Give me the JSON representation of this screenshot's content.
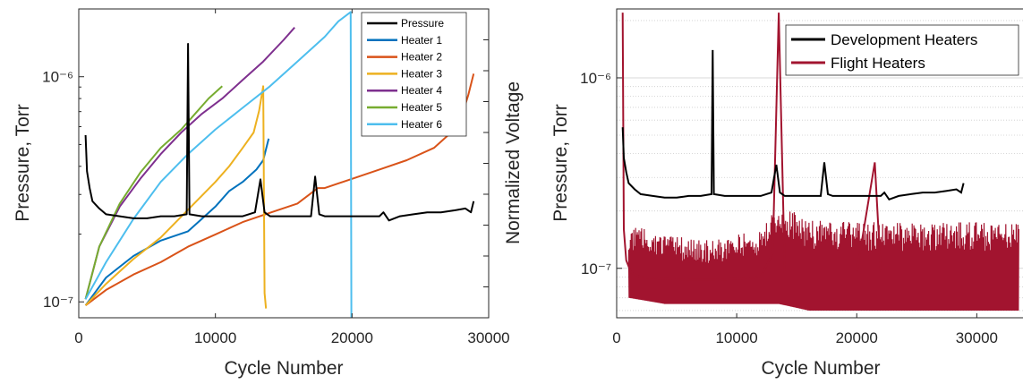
{
  "chart_data": [
    {
      "type": "line",
      "xlabel": "Cycle Number",
      "ylabel_left": "Pressure, Torr",
      "ylabel_right": "Normalized Voltage",
      "xlim": [
        0,
        30000
      ],
      "ylim_left": [
        8.5e-08,
        2e-06
      ],
      "y_scale_left": "log",
      "x_ticks": [
        "0",
        "10000",
        "20000",
        "30000"
      ],
      "y_ticks_left": [
        {
          "value": 1e-07,
          "label": "10⁻⁷"
        },
        {
          "value": 1e-06,
          "label": "10⁻⁶"
        }
      ],
      "y_ticks_right": [
        0.1,
        0.2,
        0.3,
        0.4,
        0.5,
        0.6,
        0.7,
        0.8,
        0.9,
        1.0
      ],
      "legend_position": "top-right",
      "series": [
        {
          "name": "Pressure",
          "color": "#000000",
          "axis": "left",
          "x": [
            500,
            600,
            800,
            1000,
            1500,
            2000,
            3000,
            4000,
            5000,
            6000,
            7000,
            7900,
            8000,
            8100,
            9000,
            10000,
            11000,
            12000,
            12900,
            13300,
            13600,
            14000,
            15000,
            16000,
            17000,
            17300,
            17600,
            18000,
            19000,
            20000,
            21000,
            22000,
            22300,
            22700,
            23500,
            24500,
            25500,
            26500,
            27500,
            28300,
            28700,
            28900
          ],
          "y": [
            5.5e-07,
            3.8e-07,
            3.2e-07,
            2.8e-07,
            2.6e-07,
            2.45e-07,
            2.4e-07,
            2.35e-07,
            2.35e-07,
            2.4e-07,
            2.4e-07,
            2.45e-07,
            1.4e-06,
            2.45e-07,
            2.4e-07,
            2.4e-07,
            2.4e-07,
            2.4e-07,
            2.5e-07,
            3.5e-07,
            2.5e-07,
            2.4e-07,
            2.4e-07,
            2.4e-07,
            2.4e-07,
            3.6e-07,
            2.45e-07,
            2.4e-07,
            2.4e-07,
            2.4e-07,
            2.4e-07,
            2.4e-07,
            2.5e-07,
            2.3e-07,
            2.4e-07,
            2.45e-07,
            2.5e-07,
            2.5e-07,
            2.55e-07,
            2.6e-07,
            2.5e-07,
            2.8e-07
          ]
        },
        {
          "name": "Heater 1",
          "color": "#0072BD",
          "axis": "right",
          "x": [
            500,
            2000,
            4000,
            6000,
            8000,
            9000,
            10000,
            11000,
            12000,
            13000,
            13500,
            13900
          ],
          "y": [
            0.04,
            0.13,
            0.2,
            0.25,
            0.28,
            0.32,
            0.36,
            0.41,
            0.44,
            0.48,
            0.51,
            0.58
          ]
        },
        {
          "name": "Heater 2",
          "color": "#D95319",
          "axis": "right",
          "x": [
            500,
            2000,
            4000,
            6000,
            8000,
            10000,
            12000,
            14000,
            16000,
            17500,
            18000,
            20000,
            22000,
            24000,
            26000,
            27000,
            28000,
            28500,
            28900
          ],
          "y": [
            0.04,
            0.09,
            0.14,
            0.18,
            0.23,
            0.27,
            0.31,
            0.34,
            0.37,
            0.42,
            0.42,
            0.45,
            0.48,
            0.51,
            0.55,
            0.59,
            0.65,
            0.72,
            0.79
          ]
        },
        {
          "name": "Heater 3",
          "color": "#EDB120",
          "axis": "right",
          "x": [
            500,
            2000,
            4000,
            6000,
            8000,
            10000,
            11000,
            12000,
            12800,
            13200,
            13500,
            13600,
            13700
          ],
          "y": [
            0.04,
            0.11,
            0.19,
            0.26,
            0.35,
            0.44,
            0.49,
            0.55,
            0.6,
            0.67,
            0.75,
            0.08,
            0.03
          ]
        },
        {
          "name": "Heater 4",
          "color": "#7E2F8E",
          "axis": "right",
          "x": [
            500,
            1500,
            3000,
            4500,
            6000,
            7500,
            9000,
            10500,
            12000,
            13500,
            15000,
            15800
          ],
          "y": [
            0.06,
            0.23,
            0.36,
            0.45,
            0.53,
            0.6,
            0.66,
            0.71,
            0.77,
            0.83,
            0.9,
            0.94
          ]
        },
        {
          "name": "Heater 5",
          "color": "#77AC30",
          "axis": "right",
          "x": [
            500,
            1500,
            3000,
            4500,
            6000,
            7500,
            8500,
            9500,
            10500
          ],
          "y": [
            0.06,
            0.23,
            0.37,
            0.47,
            0.55,
            0.61,
            0.66,
            0.71,
            0.75
          ]
        },
        {
          "name": "Heater 6",
          "color": "#4DBEEE",
          "axis": "right",
          "x": [
            500,
            2000,
            4000,
            6000,
            8000,
            10000,
            12000,
            14000,
            16000,
            18000,
            19000,
            19900,
            19950,
            20000
          ],
          "y": [
            0.06,
            0.18,
            0.32,
            0.44,
            0.53,
            0.61,
            0.68,
            0.75,
            0.83,
            0.91,
            0.96,
            0.99,
            0.0,
            0.0
          ]
        }
      ]
    },
    {
      "type": "line",
      "xlabel": "Cycle Number",
      "ylabel": "Pressure, Torr",
      "xlim": [
        0,
        34000
      ],
      "ylim": [
        5.5e-08,
        2.3e-06
      ],
      "y_scale": "log",
      "grid": "minor-y",
      "x_ticks": [
        "0",
        "10000",
        "20000",
        "30000"
      ],
      "y_ticks": [
        {
          "value": 1e-07,
          "label": "10⁻⁷"
        },
        {
          "value": 1e-06,
          "label": "10⁻⁶"
        }
      ],
      "legend_position": "top-right",
      "series": [
        {
          "name": "Development Heaters",
          "color": "#000000",
          "x": [
            500,
            600,
            800,
            1000,
            1500,
            2000,
            3000,
            4000,
            5000,
            6000,
            7000,
            7900,
            8000,
            8100,
            9000,
            10000,
            11000,
            12000,
            12900,
            13300,
            13600,
            14000,
            15000,
            16000,
            17000,
            17300,
            17600,
            18000,
            19000,
            20000,
            21000,
            22000,
            22300,
            22700,
            23500,
            24500,
            25500,
            26500,
            27500,
            28300,
            28700,
            28900
          ],
          "y": [
            5.5e-07,
            3.8e-07,
            3.2e-07,
            2.8e-07,
            2.6e-07,
            2.45e-07,
            2.4e-07,
            2.35e-07,
            2.35e-07,
            2.4e-07,
            2.4e-07,
            2.45e-07,
            1.4e-06,
            2.45e-07,
            2.4e-07,
            2.4e-07,
            2.4e-07,
            2.4e-07,
            2.5e-07,
            3.5e-07,
            2.5e-07,
            2.4e-07,
            2.4e-07,
            2.4e-07,
            2.4e-07,
            3.6e-07,
            2.45e-07,
            2.4e-07,
            2.4e-07,
            2.4e-07,
            2.4e-07,
            2.4e-07,
            2.5e-07,
            2.3e-07,
            2.4e-07,
            2.45e-07,
            2.5e-07,
            2.5e-07,
            2.55e-07,
            2.6e-07,
            2.5e-07,
            2.8e-07
          ]
        },
        {
          "name": "Flight Heaters",
          "color": "#A2142F",
          "x": [
            500,
            600,
            800,
            1200,
            2000,
            4000,
            6000,
            8000,
            10000,
            12000,
            13000,
            13500,
            14000,
            16000,
            18000,
            20000,
            21500,
            22000,
            24000,
            26000,
            28000,
            30000,
            32000,
            33500
          ],
          "y": [
            2.2e-06,
            1.6e-07,
            1.1e-07,
            9.5e-08,
            9e-08,
            8.8e-08,
            8.7e-08,
            8.7e-08,
            8.8e-08,
            9e-08,
            1.2e-07,
            2.2e-06,
            9.5e-08,
            9.5e-08,
            9.5e-08,
            9.5e-08,
            3.6e-07,
            9.5e-08,
            9.5e-08,
            9.5e-08,
            9.5e-08,
            9.5e-08,
            9.5e-08,
            9.5e-08
          ],
          "band": {
            "x": [
              1000,
              4000,
              8000,
              12000,
              13000,
              13500,
              16000,
              20000,
              24000,
              28000,
              32000,
              33500
            ],
            "low": [
              7e-08,
              6.5e-08,
              6.5e-08,
              6.5e-08,
              6.5e-08,
              6.5e-08,
              6e-08,
              6e-08,
              6e-08,
              6e-08,
              6e-08,
              6e-08
            ],
            "high": [
              1.7e-07,
              1.5e-07,
              1.4e-07,
              1.6e-07,
              2e-07,
              2.2e-07,
              1.8e-07,
              1.75e-07,
              1.75e-07,
              1.75e-07,
              1.75e-07,
              1.75e-07
            ]
          }
        }
      ]
    }
  ]
}
